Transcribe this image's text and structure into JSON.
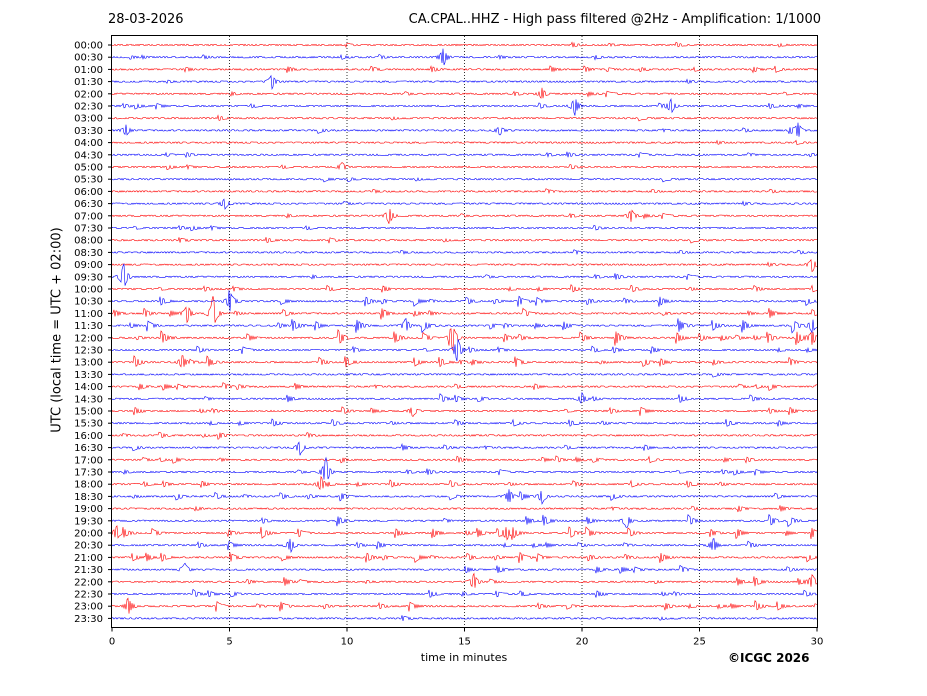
{
  "header": {
    "date": "28-03-2026",
    "title": "CA.CPAL..HHZ - High pass filtered @2Hz - Amplification: 1/1000"
  },
  "footer": {
    "copyright": "©ICGC 2026"
  },
  "chart_data": {
    "type": "line",
    "title": "CA.CPAL..HHZ - High pass filtered @2Hz - Amplification: 1/1000",
    "xlabel": "time in minutes",
    "ylabel": "UTC (local time = UTC + 02:00)",
    "xlim": [
      0,
      30
    ],
    "x_ticks": [
      0,
      5,
      10,
      15,
      20,
      25,
      30
    ],
    "x_gridlines": [
      5,
      10,
      15,
      20,
      25
    ],
    "grid": "vertical dotted",
    "trace_colors": [
      "#ff0000",
      "#0000ff"
    ],
    "rows": [
      "00:00",
      "00:30",
      "01:00",
      "01:30",
      "02:00",
      "02:30",
      "03:00",
      "03:30",
      "04:00",
      "04:30",
      "05:00",
      "05:30",
      "06:00",
      "06:30",
      "07:00",
      "07:30",
      "08:00",
      "08:30",
      "09:00",
      "09:30",
      "10:00",
      "10:30",
      "11:00",
      "11:30",
      "12:00",
      "12:30",
      "13:00",
      "13:30",
      "14:00",
      "14:30",
      "15:00",
      "15:30",
      "16:00",
      "16:30",
      "17:00",
      "17:30",
      "18:00",
      "18:30",
      "19:00",
      "19:30",
      "20:00",
      "20:30",
      "21:00",
      "21:30",
      "22:00",
      "22:30",
      "23:00",
      "23:30"
    ],
    "activity": [
      0.5,
      0.6,
      0.8,
      0.6,
      1.0,
      0.8,
      0.5,
      1.0,
      0.4,
      0.6,
      0.5,
      0.5,
      0.5,
      0.7,
      0.9,
      0.6,
      0.6,
      0.5,
      0.6,
      0.8,
      1.2,
      1.8,
      2.4,
      2.6,
      2.8,
      1.4,
      2.2,
      0.8,
      1.2,
      1.5,
      1.6,
      1.2,
      1.3,
      1.1,
      1.0,
      0.8,
      1.2,
      1.6,
      1.0,
      2.0,
      2.2,
      1.6,
      1.8,
      1.3,
      1.8,
      1.3,
      1.8,
      0.7
    ],
    "events": [
      {
        "row": "00:30",
        "minute": 14.1,
        "amp": 1.0
      },
      {
        "row": "01:30",
        "minute": 6.8,
        "amp": 0.8
      },
      {
        "row": "02:00",
        "minute": 18.3,
        "amp": 0.6
      },
      {
        "row": "02:30",
        "minute": 19.7,
        "amp": 1.0
      },
      {
        "row": "02:30",
        "minute": 23.8,
        "amp": 0.8
      },
      {
        "row": "03:30",
        "minute": 0.6,
        "amp": 0.6
      },
      {
        "row": "03:30",
        "minute": 16.5,
        "amp": 0.5
      },
      {
        "row": "03:30",
        "minute": 29.2,
        "amp": 0.8
      },
      {
        "row": "05:00",
        "minute": 9.8,
        "amp": 0.5
      },
      {
        "row": "06:30",
        "minute": 4.8,
        "amp": 0.6
      },
      {
        "row": "07:00",
        "minute": 11.8,
        "amp": 0.9
      },
      {
        "row": "07:00",
        "minute": 22.1,
        "amp": 0.7
      },
      {
        "row": "09:00",
        "minute": 29.8,
        "amp": 0.8
      },
      {
        "row": "09:30",
        "minute": 0.5,
        "amp": 1.5
      },
      {
        "row": "10:30",
        "minute": 5.0,
        "amp": 0.8
      },
      {
        "row": "11:00",
        "minute": 3.2,
        "amp": 1.0
      },
      {
        "row": "11:00",
        "minute": 4.3,
        "amp": 1.6
      },
      {
        "row": "11:30",
        "minute": 12.5,
        "amp": 0.8
      },
      {
        "row": "11:30",
        "minute": 29.8,
        "amp": 0.8
      },
      {
        "row": "12:00",
        "minute": 14.5,
        "amp": 1.2
      },
      {
        "row": "12:00",
        "minute": 29.8,
        "amp": 0.8
      },
      {
        "row": "12:30",
        "minute": 14.7,
        "amp": 1.4
      },
      {
        "row": "13:00",
        "minute": 3.0,
        "amp": 0.8
      },
      {
        "row": "14:30",
        "minute": 20.0,
        "amp": 0.6
      },
      {
        "row": "15:00",
        "minute": 12.8,
        "amp": 0.6
      },
      {
        "row": "16:30",
        "minute": 8.0,
        "amp": 0.8
      },
      {
        "row": "17:30",
        "minute": 9.1,
        "amp": 1.6
      },
      {
        "row": "18:00",
        "minute": 8.9,
        "amp": 0.8
      },
      {
        "row": "18:30",
        "minute": 16.9,
        "amp": 0.8
      },
      {
        "row": "18:30",
        "minute": 18.3,
        "amp": 0.8
      },
      {
        "row": "19:30",
        "minute": 21.9,
        "amp": 0.8
      },
      {
        "row": "20:00",
        "minute": 0.2,
        "amp": 0.8
      },
      {
        "row": "20:00",
        "minute": 16.8,
        "amp": 0.7
      },
      {
        "row": "20:30",
        "minute": 7.6,
        "amp": 0.8
      },
      {
        "row": "20:30",
        "minute": 25.6,
        "amp": 0.8
      },
      {
        "row": "21:30",
        "minute": 3.1,
        "amp": 0.7
      },
      {
        "row": "22:00",
        "minute": 15.4,
        "amp": 0.9
      },
      {
        "row": "22:00",
        "minute": 29.8,
        "amp": 0.8
      },
      {
        "row": "23:00",
        "minute": 0.7,
        "amp": 0.7
      }
    ]
  }
}
